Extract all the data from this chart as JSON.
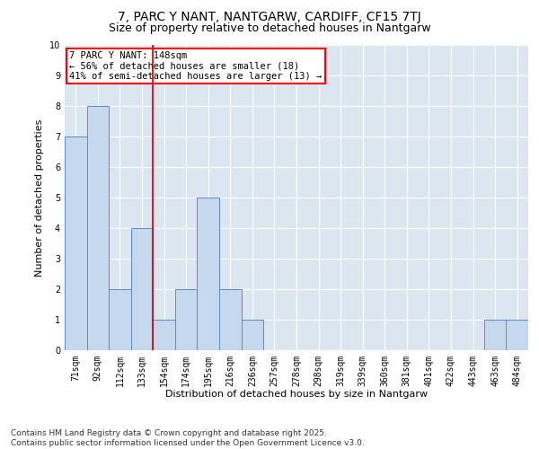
{
  "title": "7, PARC Y NANT, NANTGARW, CARDIFF, CF15 7TJ",
  "subtitle": "Size of property relative to detached houses in Nantgarw",
  "xlabel": "Distribution of detached houses by size in Nantgarw",
  "ylabel": "Number of detached properties",
  "categories": [
    "71sqm",
    "92sqm",
    "112sqm",
    "133sqm",
    "154sqm",
    "174sqm",
    "195sqm",
    "216sqm",
    "236sqm",
    "257sqm",
    "278sqm",
    "298sqm",
    "319sqm",
    "339sqm",
    "360sqm",
    "381sqm",
    "401sqm",
    "422sqm",
    "443sqm",
    "463sqm",
    "484sqm"
  ],
  "values": [
    7,
    8,
    2,
    4,
    1,
    2,
    5,
    2,
    1,
    0,
    0,
    0,
    0,
    0,
    0,
    0,
    0,
    0,
    0,
    1,
    1
  ],
  "bar_color": "#c5d8ed",
  "bar_edge_color": "#5b8ec4",
  "background_color": "#dce6f1",
  "grid_color": "#ffffff",
  "vline_x_index": 3.5,
  "vline_color": "#cc0000",
  "annotation_text": "7 PARC Y NANT: 148sqm\n← 56% of detached houses are smaller (18)\n41% of semi-detached houses are larger (13) →",
  "ylim": [
    0,
    10
  ],
  "yticks": [
    0,
    1,
    2,
    3,
    4,
    5,
    6,
    7,
    8,
    9,
    10
  ],
  "footer": "Contains HM Land Registry data © Crown copyright and database right 2025.\nContains public sector information licensed under the Open Government Licence v3.0.",
  "title_fontsize": 10,
  "subtitle_fontsize": 9,
  "xlabel_fontsize": 8,
  "ylabel_fontsize": 8,
  "tick_fontsize": 7,
  "annotation_fontsize": 7.5,
  "footer_fontsize": 6.5
}
